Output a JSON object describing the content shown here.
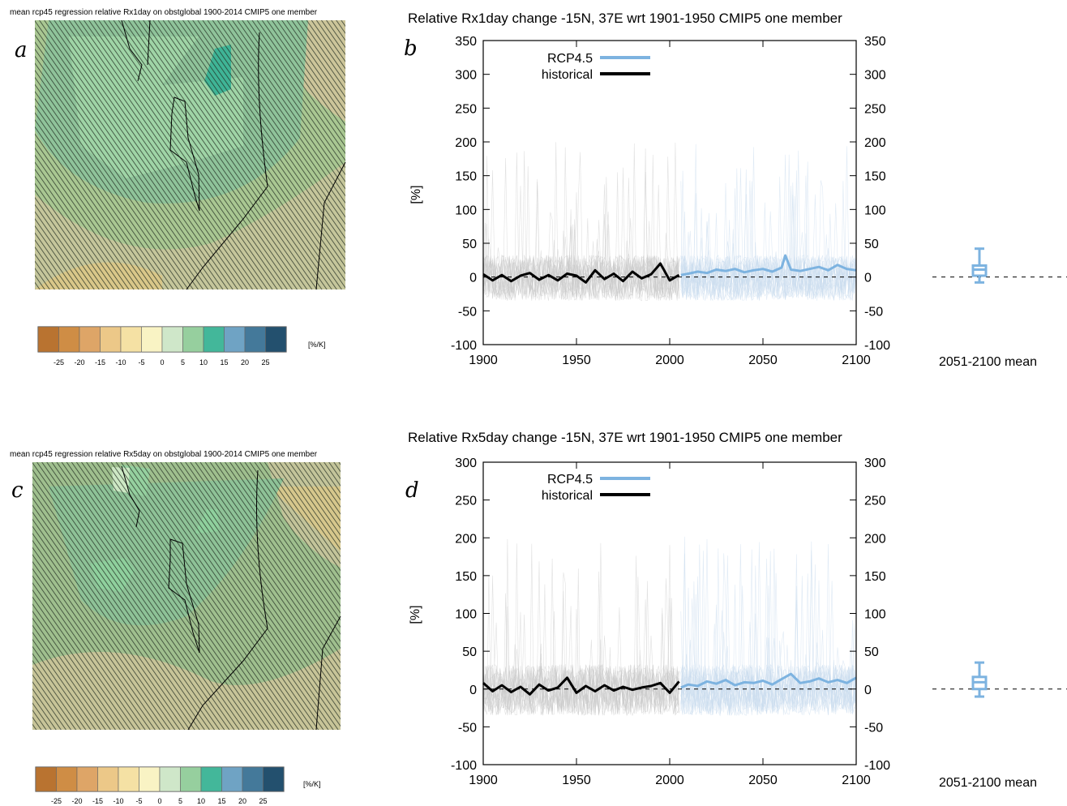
{
  "panels": [
    {
      "letter": "a",
      "title": "mean rcp45 regression relative Rx1day on obstglobal 1900-2014  CMIP5 one member",
      "colorbar": {
        "unit": "[%/K]",
        "tick_labels": [
          "-25",
          "-20",
          "-15",
          "-10",
          "-5",
          "0",
          "5",
          "10",
          "15",
          "20",
          "25"
        ],
        "colors": [
          "#b97330",
          "#cf8d45",
          "#dea567",
          "#ecc888",
          "#f5e1a4",
          "#f9f3c4",
          "#cfe7c9",
          "#96cf9e",
          "#43b79a",
          "#6fa3c4",
          "#44799a",
          "#23506e"
        ]
      }
    },
    {
      "letter": "c",
      "title": "mean rcp45 regression relative Rx5day on obstglobal 1900-2014  CMIP5 one member",
      "colorbar": {
        "unit": "[%/K]",
        "tick_labels": [
          "-25",
          "-20",
          "-15",
          "-10",
          "-5",
          "0",
          "5",
          "10",
          "15",
          "20",
          "25"
        ],
        "colors": [
          "#b97330",
          "#cf8d45",
          "#dea567",
          "#ecc888",
          "#f5e1a4",
          "#f9f3c4",
          "#cfe7c9",
          "#96cf9e",
          "#43b79a",
          "#6fa3c4",
          "#44799a",
          "#23506e"
        ]
      }
    }
  ],
  "chart_data": [
    {
      "panel": "b",
      "type": "line",
      "title": "Relative Rx1day change -15N, 37E wrt 1901-1950 CMIP5 one member",
      "ylabel": "[%]",
      "xlim": [
        1900,
        2100
      ],
      "ylim": [
        -100,
        350
      ],
      "xticks": [
        1900,
        1950,
        2000,
        2050,
        2100
      ],
      "yticks": [
        -100,
        -50,
        0,
        50,
        100,
        150,
        200,
        250,
        300,
        350
      ],
      "colors": {
        "historical": "#000000",
        "rcp45": "#7db3e0",
        "ensemble_hist": "#c8c8c8",
        "ensemble_rcp": "#c9dcef"
      },
      "series": [
        {
          "name": "RCP4.5",
          "x": [
            2006,
            2010,
            2015,
            2020,
            2025,
            2030,
            2035,
            2040,
            2045,
            2050,
            2055,
            2060,
            2062,
            2065,
            2070,
            2075,
            2080,
            2085,
            2090,
            2095,
            2100
          ],
          "values": [
            3,
            5,
            8,
            6,
            11,
            9,
            12,
            7,
            10,
            12,
            8,
            14,
            32,
            11,
            9,
            12,
            15,
            10,
            18,
            12,
            10
          ]
        },
        {
          "name": "historical",
          "x": [
            1900,
            1905,
            1910,
            1915,
            1920,
            1925,
            1930,
            1935,
            1940,
            1945,
            1950,
            1955,
            1960,
            1965,
            1970,
            1975,
            1980,
            1985,
            1990,
            1995,
            2000,
            2005
          ],
          "values": [
            4,
            -5,
            3,
            -6,
            2,
            6,
            -4,
            3,
            -5,
            5,
            2,
            -8,
            10,
            -3,
            5,
            -6,
            8,
            -2,
            4,
            20,
            -5,
            3
          ]
        }
      ],
      "boxplot": {
        "label": "2051-2100 mean",
        "min": -8,
        "q1": 2,
        "median": 11,
        "q3": 17,
        "max": 42
      }
    },
    {
      "panel": "d",
      "type": "line",
      "title": "Relative Rx5day change -15N, 37E wrt 1901-1950 CMIP5 one member",
      "ylabel": "[%]",
      "xlim": [
        1900,
        2100
      ],
      "ylim": [
        -100,
        300
      ],
      "xticks": [
        1900,
        1950,
        2000,
        2050,
        2100
      ],
      "yticks": [
        -100,
        -50,
        0,
        50,
        100,
        150,
        200,
        250,
        300
      ],
      "colors": {
        "historical": "#000000",
        "rcp45": "#7db3e0",
        "ensemble_hist": "#c8c8c8",
        "ensemble_rcp": "#c9dcef"
      },
      "series": [
        {
          "name": "RCP4.5",
          "x": [
            2006,
            2010,
            2015,
            2020,
            2025,
            2030,
            2035,
            2040,
            2045,
            2050,
            2055,
            2060,
            2065,
            2070,
            2075,
            2080,
            2085,
            2090,
            2095,
            2100
          ],
          "values": [
            2,
            6,
            4,
            10,
            7,
            12,
            5,
            9,
            8,
            11,
            6,
            13,
            20,
            8,
            10,
            14,
            9,
            12,
            8,
            15
          ]
        },
        {
          "name": "historical",
          "x": [
            1900,
            1905,
            1910,
            1915,
            1920,
            1925,
            1930,
            1935,
            1940,
            1945,
            1950,
            1955,
            1960,
            1965,
            1970,
            1975,
            1980,
            1985,
            1990,
            1995,
            2000,
            2005
          ],
          "values": [
            8,
            -3,
            5,
            -4,
            3,
            -7,
            6,
            -2,
            2,
            15,
            -5,
            4,
            -3,
            5,
            -2,
            3,
            -1,
            2,
            4,
            8,
            -5,
            10
          ]
        }
      ],
      "boxplot": {
        "label": "2051-2100 mean",
        "min": -10,
        "q1": 0,
        "median": 9,
        "q3": 16,
        "max": 35
      }
    }
  ]
}
